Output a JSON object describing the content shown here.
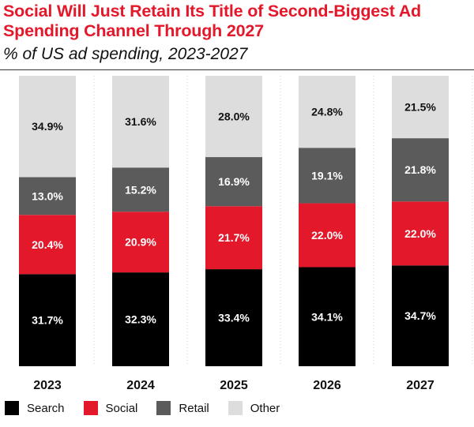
{
  "header": {
    "title": "Social Will Just Retain Its Title of Second-Biggest Ad Spending Channel Through 2027",
    "subtitle": "% of US ad spending, 2023-2027"
  },
  "chart_data": {
    "type": "bar",
    "stacked": true,
    "title": "Social Will Just Retain Its Title of Second-Biggest Ad Spending Channel Through 2027",
    "subtitle": "% of US ad spending, 2023-2027",
    "categories": [
      "2023",
      "2024",
      "2025",
      "2026",
      "2027"
    ],
    "series": [
      {
        "name": "Search",
        "color": "#000000",
        "label_color": "#ffffff",
        "values": [
          31.7,
          32.3,
          33.4,
          34.1,
          34.7
        ]
      },
      {
        "name": "Social",
        "color": "#e4182b",
        "label_color": "#ffffff",
        "values": [
          20.4,
          20.9,
          21.7,
          22.0,
          22.0
        ]
      },
      {
        "name": "Retail",
        "color": "#5b5b5b",
        "label_color": "#ffffff",
        "values": [
          13.0,
          15.2,
          16.9,
          19.1,
          21.8
        ]
      },
      {
        "name": "Other",
        "color": "#dddddd",
        "label_color": "#111111",
        "values": [
          34.9,
          31.6,
          28.0,
          24.8,
          21.5
        ]
      }
    ],
    "ylim": [
      0,
      100
    ],
    "value_suffix": "%",
    "grid": false,
    "legend_position": "bottom-left"
  }
}
